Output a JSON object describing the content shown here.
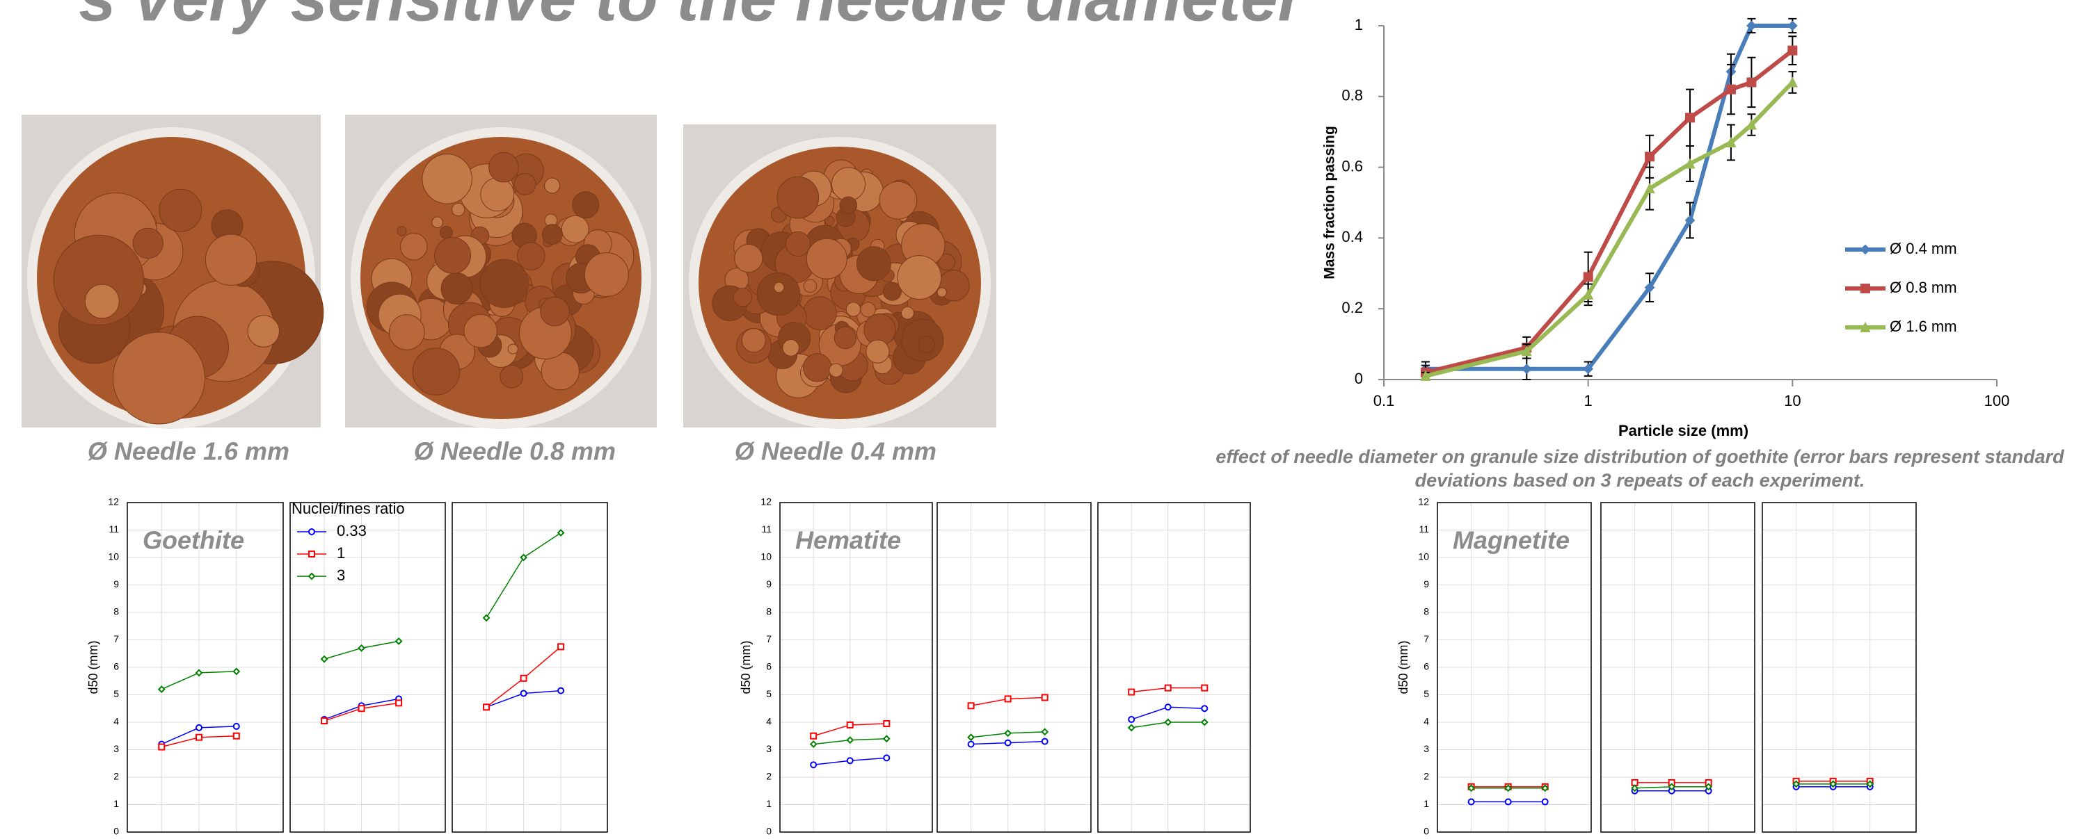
{
  "title": "s very sensitive to the needle diameter",
  "photos": [
    {
      "caption": "Ø Needle 1.6 mm"
    },
    {
      "caption": "Ø Needle 0.8 mm"
    },
    {
      "caption": "Ø Needle 0.4 mm"
    }
  ],
  "chart_data": [
    {
      "type": "line",
      "xlabel": "Particle size (mm)",
      "ylabel": "Mass fraction passing",
      "caption": "effect of needle diameter on granule size distribution of goethite (error bars represent standard deviations based on 3 repeats of each experiment.",
      "log_x": true,
      "xlim": [
        0.1,
        100
      ],
      "xticks": [
        0.1,
        1,
        10,
        100
      ],
      "ylim": [
        0,
        1
      ],
      "yticks": [
        0,
        0.2,
        0.4,
        0.6,
        0.8,
        1
      ],
      "x": [
        0.16,
        0.5,
        1,
        2,
        3.15,
        5,
        6.3,
        10
      ],
      "series": [
        {
          "name": "Ø 0.4 mm",
          "color": "#4a7ebb",
          "marker": "diamond",
          "values": [
            0.03,
            0.03,
            0.03,
            0.26,
            0.45,
            0.87,
            1,
            1
          ],
          "errors": [
            0.02,
            0.03,
            0.02,
            0.04,
            0.05,
            0.05,
            0.02,
            0.02
          ]
        },
        {
          "name": "Ø 0.8 mm",
          "color": "#be4b48",
          "marker": "square",
          "values": [
            0.02,
            0.09,
            0.29,
            0.63,
            0.74,
            0.82,
            0.84,
            0.93
          ],
          "errors": [
            0.02,
            0.03,
            0.07,
            0.06,
            0.08,
            0.07,
            0.07,
            0.04
          ]
        },
        {
          "name": "Ø 1.6 mm",
          "color": "#98b954",
          "marker": "triangle",
          "values": [
            0.01,
            0.08,
            0.24,
            0.54,
            0.61,
            0.67,
            0.72,
            0.84
          ],
          "errors": [
            0.01,
            0.02,
            0.03,
            0.06,
            0.05,
            0.05,
            0.03,
            0.03
          ]
        }
      ]
    },
    {
      "type": "panels",
      "title": "Goethite",
      "ylabel": "d50 (mm)",
      "ylim": [
        0,
        12
      ],
      "yticks": [
        0,
        1,
        2,
        3,
        4,
        5,
        6,
        7,
        8,
        9,
        10,
        11,
        12
      ],
      "legend_title": "Nuclei/fines ratio",
      "series_names": [
        "0.33",
        "1",
        "3"
      ],
      "colors": [
        "#0000ff",
        "#ff0000",
        "#008000"
      ],
      "markers": [
        "circle",
        "square",
        "diamond"
      ],
      "panels": [
        {
          "values": [
            [
              3.2,
              3.8,
              3.85
            ],
            [
              3.1,
              3.45,
              3.5
            ],
            [
              5.2,
              5.8,
              5.85
            ]
          ]
        },
        {
          "values": [
            [
              4.1,
              4.6,
              4.85
            ],
            [
              4.05,
              4.5,
              4.7
            ],
            [
              6.3,
              6.7,
              6.95
            ]
          ]
        },
        {
          "values": [
            [
              4.55,
              5.05,
              5.15
            ],
            [
              4.55,
              5.6,
              6.75
            ],
            [
              7.8,
              10,
              10.9
            ]
          ]
        }
      ]
    },
    {
      "type": "panels",
      "title": "Hematite",
      "ylabel": "d50 (mm)",
      "ylim": [
        0,
        12
      ],
      "yticks": [
        0,
        1,
        2,
        3,
        4,
        5,
        6,
        7,
        8,
        9,
        10,
        11,
        12
      ],
      "colors": [
        "#0000ff",
        "#ff0000",
        "#008000"
      ],
      "markers": [
        "circle",
        "square",
        "diamond"
      ],
      "panels": [
        {
          "values": [
            [
              2.45,
              2.6,
              2.7
            ],
            [
              3.5,
              3.9,
              3.95
            ],
            [
              3.2,
              3.35,
              3.4
            ]
          ]
        },
        {
          "values": [
            [
              3.2,
              3.25,
              3.3
            ],
            [
              4.6,
              4.85,
              4.9
            ],
            [
              3.45,
              3.6,
              3.65
            ]
          ]
        },
        {
          "values": [
            [
              4.1,
              4.55,
              4.5
            ],
            [
              5.1,
              5.25,
              5.25
            ],
            [
              3.8,
              4,
              4
            ]
          ]
        }
      ]
    },
    {
      "type": "panels",
      "title": "Magnetite",
      "ylabel": "d50 (mm)",
      "ylim": [
        0,
        12
      ],
      "yticks": [
        0,
        1,
        2,
        3,
        4,
        5,
        6,
        7,
        8,
        9,
        10,
        11,
        12
      ],
      "colors": [
        "#0000ff",
        "#ff0000",
        "#008000"
      ],
      "markers": [
        "circle",
        "square",
        "diamond"
      ],
      "panels": [
        {
          "values": [
            [
              1.1,
              1.1,
              1.1
            ],
            [
              1.65,
              1.65,
              1.65
            ],
            [
              1.6,
              1.6,
              1.6
            ]
          ]
        },
        {
          "values": [
            [
              1.5,
              1.5,
              1.5
            ],
            [
              1.8,
              1.8,
              1.8
            ],
            [
              1.6,
              1.65,
              1.65
            ]
          ]
        },
        {
          "values": [
            [
              1.65,
              1.65,
              1.65
            ],
            [
              1.85,
              1.85,
              1.85
            ],
            [
              1.75,
              1.75,
              1.75
            ]
          ]
        }
      ]
    }
  ]
}
